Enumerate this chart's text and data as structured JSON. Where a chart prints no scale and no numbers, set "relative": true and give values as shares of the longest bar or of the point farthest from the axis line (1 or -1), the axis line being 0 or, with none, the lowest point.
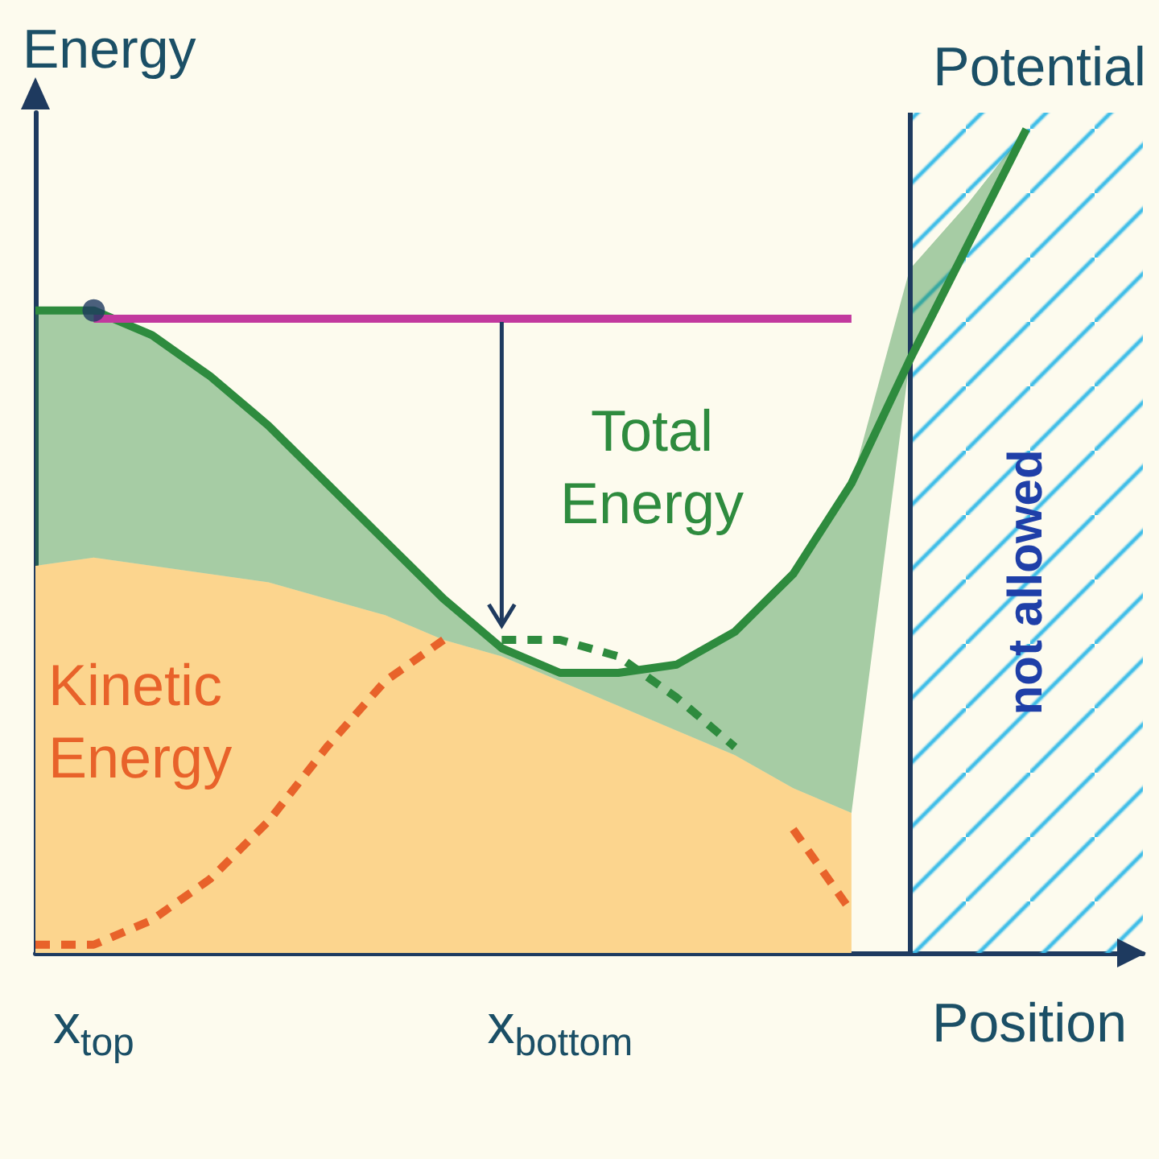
{
  "chart_data": {
    "type": "line",
    "relative": true,
    "ylabel": "Energy",
    "xlabel": "Position",
    "annotations": [
      "Potential",
      "Total Energy",
      "Kinetic Energy",
      "not allowed"
    ],
    "categories": [
      null,
      "x$_{top}$",
      null,
      null,
      null,
      null,
      null,
      null,
      null,
      "x$_{bottom}$",
      null,
      null,
      null,
      null,
      null,
      null,
      null,
      null,
      null,
      null
    ],
    "series": [
      {
        "type": "area",
        "color": "#fcd58e",
        "values": [
          0.47,
          0.48,
          0.47,
          0.46,
          0.45,
          0.43,
          0.41,
          0.38,
          0.36,
          0.33,
          0.3,
          0.27,
          0.24,
          0.2,
          0.17,
          null,
          null,
          null,
          null,
          null
        ]
      },
      {
        "color": "#2e8b3e",
        "values": [
          0.78,
          0.78,
          0.75,
          0.7,
          0.64,
          0.57,
          0.5,
          0.43,
          0.37,
          0.34,
          0.34,
          0.35,
          0.39,
          0.46,
          0.57,
          0.72,
          0.86,
          1,
          null,
          null
        ],
        "lower": [
          0.47,
          0.48,
          0.47,
          0.46,
          0.45,
          0.43,
          0.41,
          0.38,
          0.36,
          0.33,
          0.3,
          0.27,
          0.24,
          0.2,
          0.17,
          0.72,
          0.86,
          1,
          null,
          null
        ],
        "upper": [
          0.78,
          0.78,
          0.75,
          0.7,
          0.64,
          0.57,
          0.5,
          0.43,
          0.37,
          0.34,
          0.34,
          0.35,
          0.39,
          0.46,
          0.57,
          0.83,
          0.91,
          1,
          null,
          null
        ]
      },
      {
        "color": "#e8622a",
        "line_style": "dashed",
        "values": [
          0.01,
          0.01,
          0.04,
          0.09,
          0.16,
          0.25,
          0.33,
          0.38,
          null,
          null,
          null,
          null,
          null,
          0.15,
          0.05,
          null,
          null,
          null,
          null,
          null
        ]
      },
      {
        "color": "#2e8b3e",
        "line_style": "dashed",
        "values": [
          null,
          null,
          null,
          null,
          null,
          null,
          null,
          null,
          0.38,
          0.38,
          0.36,
          0.31,
          0.25,
          null,
          null,
          null,
          null,
          null,
          null,
          null
        ]
      },
      {
        "color": "#c2399e",
        "values": [
          null,
          0.77,
          0.77,
          0.77,
          0.77,
          0.77,
          0.77,
          0.77,
          0.77,
          0.77,
          0.77,
          0.77,
          0.77,
          0.77,
          0.77,
          null,
          null,
          null,
          null,
          null
        ]
      },
      {
        "type": "scatter",
        "color": "#1e3a5f",
        "marker": "circle",
        "values": [
          null,
          0.78,
          null,
          null,
          null,
          null,
          null,
          null,
          null,
          null,
          null,
          null,
          null,
          null,
          null,
          null,
          null,
          null,
          null,
          null
        ]
      }
    ],
    "marker": "none",
    "grid": false
  }
}
